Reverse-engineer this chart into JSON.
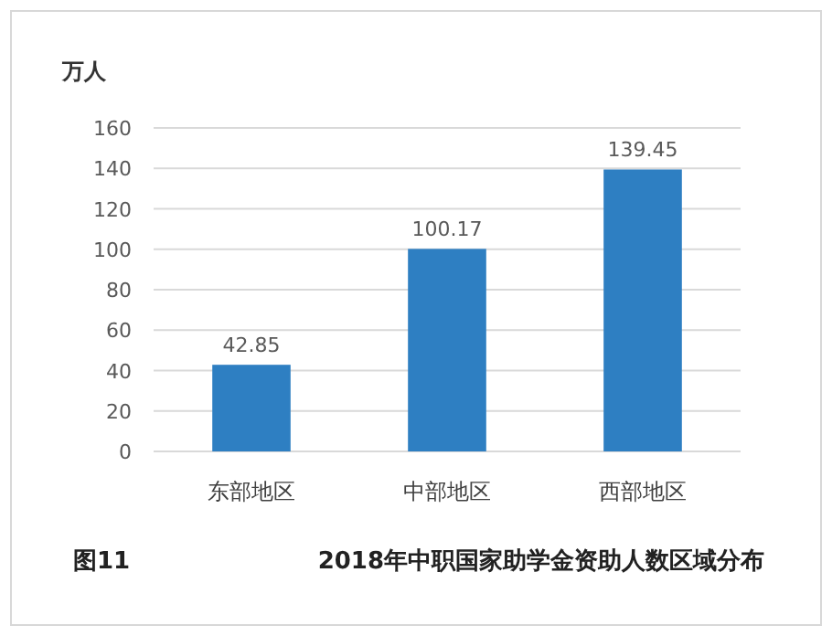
{
  "chart_data": {
    "type": "bar",
    "title": "2018年中职国家助学金资助人数区域分布",
    "ylabel": "万人",
    "annotations": [
      "图11"
    ],
    "categories": [
      "东部地区",
      "中部地区",
      "西部地区"
    ],
    "values": [
      42.85,
      100.17,
      139.45
    ],
    "color": "#2e7fc2",
    "ylim": [
      0,
      160
    ],
    "yticks": [
      0,
      20,
      40,
      60,
      80,
      100,
      120,
      140,
      160
    ],
    "grid": "y",
    "data_labels": true
  }
}
